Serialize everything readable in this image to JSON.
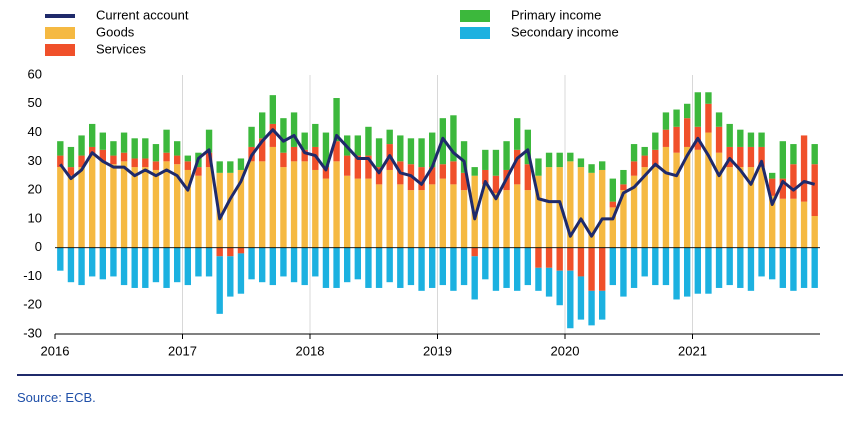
{
  "chart_data": {
    "type": "bar",
    "categories": [
      "2016",
      null,
      null,
      null,
      null,
      null,
      null,
      null,
      null,
      null,
      null,
      null,
      "2017",
      null,
      null,
      null,
      null,
      null,
      null,
      null,
      null,
      null,
      null,
      null,
      "2018",
      null,
      null,
      null,
      null,
      null,
      null,
      null,
      null,
      null,
      null,
      null,
      "2019",
      null,
      null,
      null,
      null,
      null,
      null,
      null,
      null,
      null,
      null,
      null,
      "2020",
      null,
      null,
      null,
      null,
      null,
      null,
      null,
      null,
      null,
      null,
      null,
      "2021",
      null,
      null,
      null,
      null,
      null,
      null,
      null,
      null,
      null,
      null,
      null
    ],
    "series": [
      {
        "name": "Current account",
        "type": "line",
        "color": "#1f2a6b",
        "values": [
          29,
          24,
          27,
          33,
          30,
          28,
          28,
          25,
          27,
          25,
          27,
          25,
          20,
          31,
          34,
          10,
          17,
          23,
          32,
          37,
          41,
          37,
          39,
          33,
          32,
          27,
          39,
          35,
          31,
          31,
          26,
          32,
          26,
          25,
          22,
          28,
          38,
          33,
          30,
          10,
          23,
          17,
          24,
          31,
          34,
          17,
          16,
          16,
          4,
          10,
          4,
          10,
          10,
          19,
          21,
          25,
          29,
          26,
          25,
          32,
          38,
          32,
          25,
          31,
          27,
          22,
          30,
          15,
          23,
          20,
          23,
          22
        ]
      },
      {
        "name": "Goods",
        "color": "#f5b942",
        "values": [
          28,
          25,
          28,
          32,
          30,
          29,
          30,
          28,
          28,
          27,
          30,
          29,
          27,
          25,
          28,
          26,
          26,
          27,
          30,
          30,
          35,
          28,
          30,
          30,
          27,
          24,
          30,
          25,
          24,
          24,
          22,
          27,
          22,
          20,
          20,
          22,
          24,
          22,
          20,
          25,
          22,
          19,
          20,
          22,
          20,
          25,
          28,
          28,
          30,
          28,
          26,
          27,
          14,
          20,
          25,
          28,
          28,
          35,
          33,
          35,
          34,
          40,
          33,
          28,
          28,
          28,
          28,
          18,
          17,
          17,
          16,
          11
        ]
      },
      {
        "name": "Services",
        "color": "#f0502a",
        "values": [
          4,
          3,
          4,
          3,
          4,
          3,
          3,
          3,
          3,
          3,
          3,
          3,
          3,
          3,
          5,
          -3,
          -3,
          -2,
          5,
          8,
          8,
          5,
          5,
          4,
          8,
          4,
          7,
          7,
          8,
          8,
          6,
          9,
          8,
          9,
          8,
          6,
          5,
          8,
          6,
          -3,
          5,
          6,
          7,
          12,
          9,
          -7,
          -7,
          -8,
          -8,
          -10,
          -15,
          -15,
          2,
          2,
          5,
          4,
          6,
          6,
          9,
          10,
          8,
          10,
          9,
          7,
          7,
          7,
          7,
          6,
          7,
          12,
          23,
          18
        ]
      },
      {
        "name": "Primary income",
        "color": "#3cb83c",
        "values": [
          5,
          7,
          7,
          8,
          6,
          5,
          7,
          7,
          7,
          6,
          8,
          5,
          2,
          5,
          8,
          4,
          4,
          4,
          7,
          9,
          10,
          12,
          12,
          6,
          8,
          12,
          15,
          7,
          7,
          10,
          10,
          5,
          9,
          9,
          10,
          12,
          16,
          16,
          11,
          3,
          7,
          9,
          10,
          11,
          12,
          6,
          5,
          5,
          3,
          3,
          3,
          3,
          8,
          5,
          6,
          3,
          6,
          6,
          6,
          5,
          12,
          4,
          5,
          8,
          6,
          5,
          5,
          2,
          13,
          7,
          0,
          7
        ]
      },
      {
        "name": "Secondary income",
        "color": "#1cb1e0",
        "values": [
          -8,
          -12,
          -13,
          -10,
          -11,
          -10,
          -13,
          -14,
          -14,
          -12,
          -14,
          -12,
          -13,
          -10,
          -10,
          -20,
          -14,
          -14,
          -11,
          -12,
          -13,
          -10,
          -12,
          -13,
          -10,
          -14,
          -14,
          -12,
          -11,
          -14,
          -14,
          -12,
          -14,
          -13,
          -15,
          -14,
          -13,
          -15,
          -13,
          -15,
          -11,
          -15,
          -14,
          -15,
          -13,
          -8,
          -10,
          -12,
          -20,
          -15,
          -12,
          -10,
          -13,
          -17,
          -14,
          -10,
          -13,
          -13,
          -18,
          -17,
          -16,
          -16,
          -14,
          -13,
          -14,
          -15,
          -10,
          -11,
          -14,
          -15,
          -14,
          -14
        ]
      }
    ],
    "ylim": [
      -30,
      60
    ],
    "yticks": [
      -30,
      -20,
      -10,
      0,
      10,
      20,
      30,
      40,
      50,
      60
    ],
    "grid": true
  },
  "source": "Source: ECB."
}
